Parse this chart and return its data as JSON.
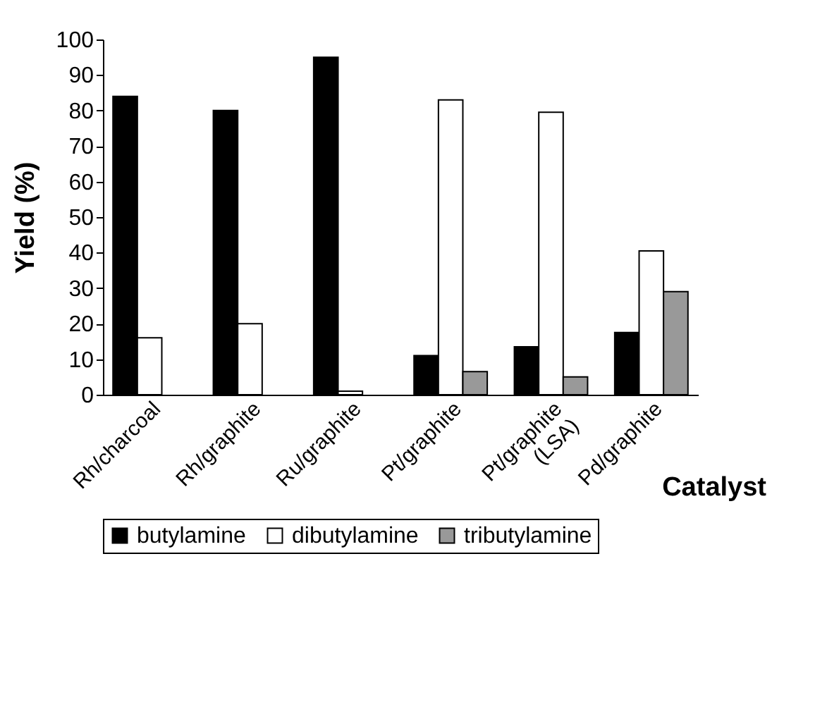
{
  "chart_data": {
    "type": "bar",
    "xlabel": "Catalyst",
    "ylabel": "Yield (%)",
    "categories": [
      "Rh/charcoal",
      "Rh/graphite",
      "Ru/graphite",
      "Pt/graphite",
      "Pt/graphite\n(LSA)",
      "Pd/graphite"
    ],
    "series": [
      {
        "name": "butylamine",
        "color": "#000000",
        "values": [
          84,
          80,
          95,
          11,
          13.5,
          17.5
        ]
      },
      {
        "name": "dibutylamine",
        "color": "#ffffff",
        "values": [
          16,
          20,
          1,
          83,
          79.5,
          40.5
        ]
      },
      {
        "name": "tributylamine",
        "color": "#999999",
        "values": [
          null,
          null,
          null,
          6.5,
          5,
          29
        ]
      }
    ],
    "ylim": [
      0,
      100
    ],
    "yticks": [
      0,
      10,
      20,
      30,
      40,
      50,
      60,
      70,
      80,
      90,
      100
    ],
    "grid": false,
    "legend": "bottom"
  }
}
